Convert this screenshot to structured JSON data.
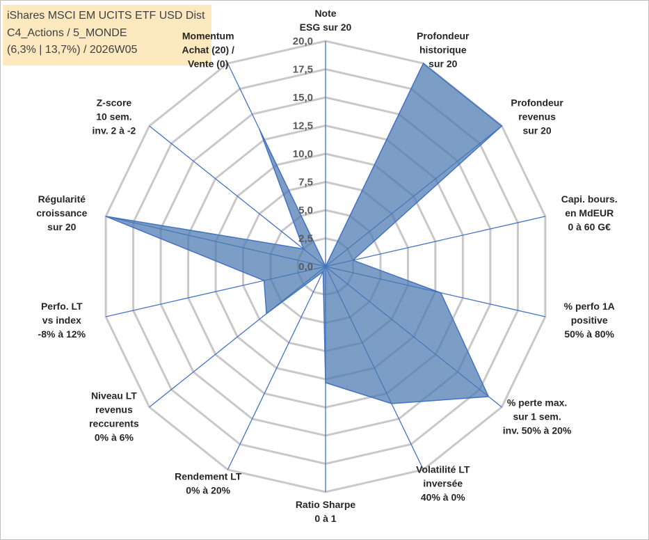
{
  "title": {
    "line1": "iShares MSCI EM UCITS ETF USD Dist",
    "line2": "C4_Actions / 5_MONDE",
    "line3": "(6,3% | 13,7%) / 2026W05"
  },
  "chart_data": {
    "type": "radar",
    "title": "iShares MSCI EM UCITS ETF USD Dist",
    "rmin": 0,
    "rmax": 20,
    "tick_step": 2.5,
    "tick_labels": [
      "0,0",
      "2,5",
      "5,0",
      "7,5",
      "10,0",
      "12,5",
      "15,0",
      "17,5",
      "20,0"
    ],
    "axes": [
      {
        "label": [
          "Note",
          "ESG sur 20"
        ],
        "value": 0
      },
      {
        "label": [
          "Profondeur",
          "historique",
          "sur 20"
        ],
        "value": 20
      },
      {
        "label": [
          "Profondeur",
          "revenus",
          "sur 20"
        ],
        "value": 20
      },
      {
        "label": [
          "Capi. bours.",
          "en MdEUR",
          "0 à 60 G€"
        ],
        "value": 2.5
      },
      {
        "label": [
          "% perfo 1A",
          "positive",
          "50% à 80%"
        ],
        "value": 10.5
      },
      {
        "label": [
          "% perte max.",
          "sur 1 sem.",
          "inv. 50% à 20%"
        ],
        "value": 18.5
      },
      {
        "label": [
          "Volatilité LT",
          "inversée",
          "40% à 0%"
        ],
        "value": 13.5
      },
      {
        "label": [
          "Ratio Sharpe",
          "0 à 1"
        ],
        "value": 10.3
      },
      {
        "label": [
          "Rendement LT",
          "0% à 20%"
        ],
        "value": 0.5
      },
      {
        "label": [
          "Niveau LT",
          "revenus",
          "reccurents",
          "0% à 6%"
        ],
        "value": 6.7
      },
      {
        "label": [
          "Perfo. LT",
          "vs index",
          "-8% à 12%"
        ],
        "value": 5.6
      },
      {
        "label": [
          "Régularité",
          "croissance",
          "sur 20"
        ],
        "value": 20
      },
      {
        "label": [
          "Z-score",
          "10 sem.",
          "inv. 2 à -2"
        ],
        "value": 2.5
      },
      {
        "label": [
          "Momentum",
          "Achat (20) /",
          "Vente (0)"
        ],
        "value": 13.5
      }
    ],
    "series": [
      {
        "name": "Score",
        "color": "#4a78b0"
      }
    ],
    "grid": true,
    "legend": "none"
  }
}
